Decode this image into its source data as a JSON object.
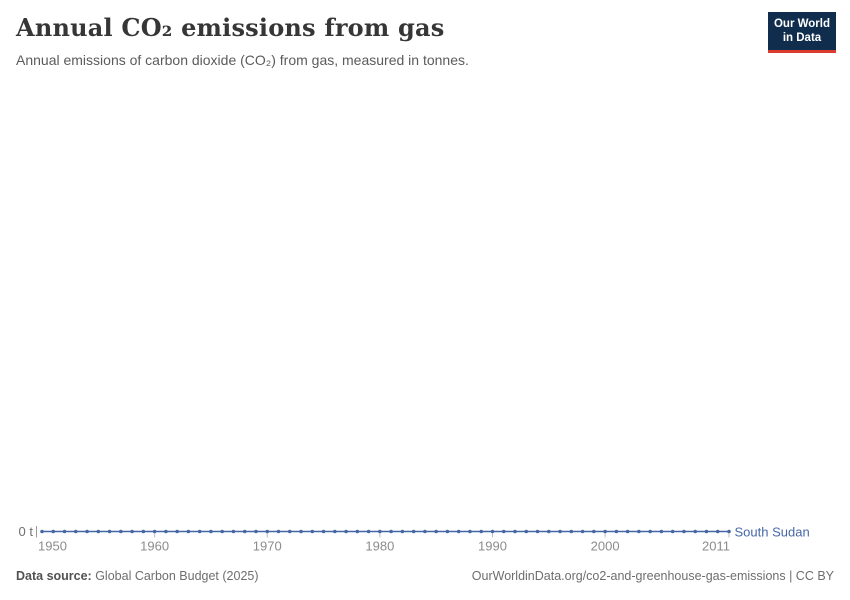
{
  "header": {
    "title": "Annual CO₂ emissions from gas",
    "subtitle": "Annual emissions of carbon dioxide (CO₂) from gas, measured in tonnes."
  },
  "logo": {
    "line1": "Our World",
    "line2": "in Data",
    "bg_color": "#102D4E",
    "stripe_color": "#DC3B2F"
  },
  "chart_data": {
    "type": "line",
    "title": "Annual CO₂ emissions from gas",
    "unit": "t",
    "y_zero_tick_label": "0 t",
    "x_ticks": [
      1950,
      1960,
      1970,
      1980,
      1990,
      2000,
      2011
    ],
    "xlim": [
      1950,
      2011
    ],
    "ylim": [
      0,
      0
    ],
    "grid": false,
    "legend_position": "end-of-line",
    "x": [
      1950,
      1951,
      1952,
      1953,
      1954,
      1955,
      1956,
      1957,
      1958,
      1959,
      1960,
      1961,
      1962,
      1963,
      1964,
      1965,
      1966,
      1967,
      1968,
      1969,
      1970,
      1971,
      1972,
      1973,
      1974,
      1975,
      1976,
      1977,
      1978,
      1979,
      1980,
      1981,
      1982,
      1983,
      1984,
      1985,
      1986,
      1987,
      1988,
      1989,
      1990,
      1991,
      1992,
      1993,
      1994,
      1995,
      1996,
      1997,
      1998,
      1999,
      2000,
      2001,
      2002,
      2003,
      2004,
      2005,
      2006,
      2007,
      2008,
      2009,
      2010,
      2011
    ],
    "series": [
      {
        "name": "South Sudan",
        "color": "#4667A6",
        "values": [
          0,
          0,
          0,
          0,
          0,
          0,
          0,
          0,
          0,
          0,
          0,
          0,
          0,
          0,
          0,
          0,
          0,
          0,
          0,
          0,
          0,
          0,
          0,
          0,
          0,
          0,
          0,
          0,
          0,
          0,
          0,
          0,
          0,
          0,
          0,
          0,
          0,
          0,
          0,
          0,
          0,
          0,
          0,
          0,
          0,
          0,
          0,
          0,
          0,
          0,
          0,
          0,
          0,
          0,
          0,
          0,
          0,
          0,
          0,
          0,
          0,
          0
        ]
      }
    ]
  },
  "footer": {
    "source_label": "Data source:",
    "source_value": " Global Carbon Budget (2025)",
    "citation": "OurWorldinData.org/co2-and-greenhouse-gas-emissions | CC BY"
  }
}
